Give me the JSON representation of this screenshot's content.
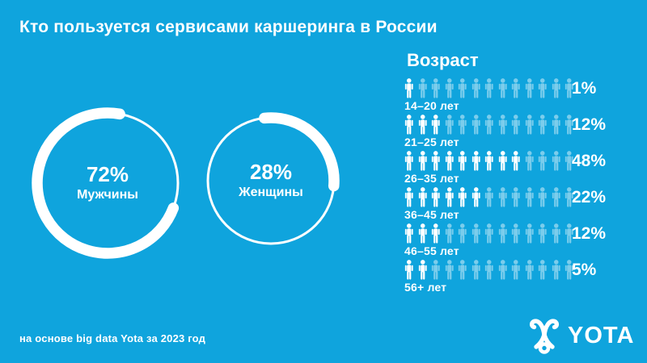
{
  "title": "Кто пользуется сервисами каршеринга в России",
  "colors": {
    "background": "#0FA4DD",
    "foreground": "#FFFFFF",
    "faded_icon_opacity": 0.45
  },
  "chart_data": [
    {
      "type": "pie",
      "name": "gender-share-men",
      "label": "Мужчины",
      "value": 72,
      "display": "72%"
    },
    {
      "type": "pie",
      "name": "gender-share-women",
      "label": "Женщины",
      "value": 28,
      "display": "28%"
    },
    {
      "type": "bar",
      "name": "age-distribution",
      "title": "Возраст",
      "total_icons": 13,
      "rows": [
        {
          "label": "14–20 лет",
          "value": 1,
          "display": "1%",
          "filled_icons": 1
        },
        {
          "label": "21–25 лет",
          "value": 12,
          "display": "12%",
          "filled_icons": 3
        },
        {
          "label": "26–35 лет",
          "value": 48,
          "display": "48%",
          "filled_icons": 9
        },
        {
          "label": "36–45 лет",
          "value": 22,
          "display": "22%",
          "filled_icons": 6
        },
        {
          "label": "46–55 лет",
          "value": 12,
          "display": "12%",
          "filled_icons": 3
        },
        {
          "label": "56+ лет",
          "value": 5,
          "display": "5%",
          "filled_icons": 2
        }
      ]
    }
  ],
  "footer": {
    "source": "на основе big data Yota за 2023 год"
  },
  "logo": {
    "text": "YOTA"
  }
}
